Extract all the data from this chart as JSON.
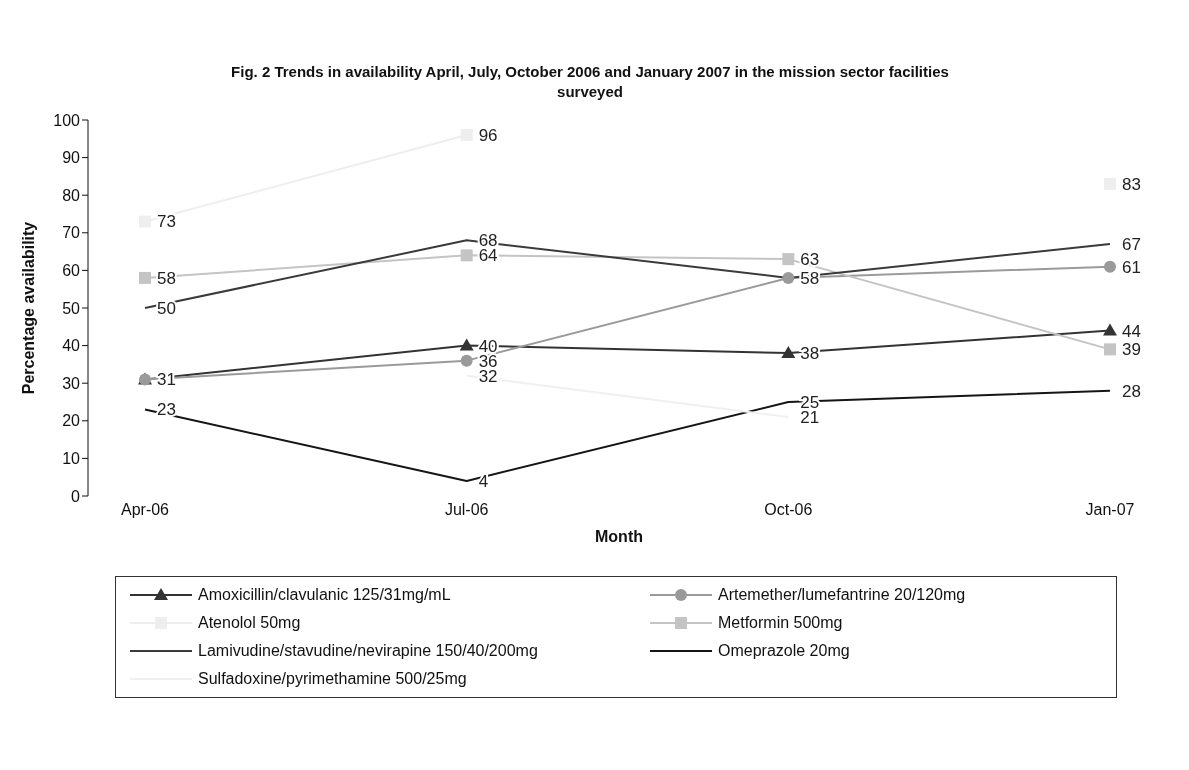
{
  "chart_data": {
    "type": "line",
    "title": "Fig. 2 Trends in availability April, July, October 2006 and January 2007 in the mission sector facilities surveyed",
    "xlabel": "Month",
    "ylabel": "Percentage availability",
    "categories": [
      "Apr-06",
      "Jul-06",
      "Oct-06",
      "Jan-07"
    ],
    "ylim": [
      0,
      100
    ],
    "yticks": [
      0,
      10,
      20,
      30,
      40,
      50,
      60,
      70,
      80,
      90,
      100
    ],
    "grid": false,
    "legend": "bottom",
    "series": [
      {
        "name": "Amoxicillin/clavulanic 125/31mg/mL",
        "color": "#333333",
        "marker": "triangle",
        "values": [
          31,
          40,
          38,
          44
        ],
        "value_labels": [
          "31",
          "40",
          "38",
          "44"
        ]
      },
      {
        "name": "Artemether/lumefantrine 20/120mg",
        "color": "#9a9a9a",
        "marker": "circle",
        "values": [
          31,
          36,
          58,
          61
        ],
        "value_labels": [
          null,
          "36",
          "58",
          "61"
        ]
      },
      {
        "name": "Atenolol 50mg",
        "color": "#eeeeee",
        "marker": "square",
        "values": [
          73,
          96,
          null,
          83
        ],
        "value_labels": [
          "73",
          "96",
          null,
          "83"
        ]
      },
      {
        "name": "Metformin 500mg",
        "color": "#c4c4c4",
        "marker": "square",
        "values": [
          58,
          64,
          63,
          39
        ],
        "value_labels": [
          "58",
          "64",
          "63",
          "39"
        ]
      },
      {
        "name": "Lamivudine/stavudine/nevirapine 150/40/200mg",
        "color": "#3a3a3a",
        "marker": "none",
        "values": [
          50,
          68,
          58,
          67
        ],
        "value_labels": [
          "50",
          "68",
          null,
          "67"
        ]
      },
      {
        "name": "Omeprazole 20mg",
        "color": "#151515",
        "marker": "none",
        "values": [
          23,
          4,
          25,
          28
        ],
        "value_labels": [
          "23",
          "4",
          "25",
          "28"
        ]
      },
      {
        "name": "Sulfadoxine/pyrimethamine 500/25mg",
        "color": "#f0f0f0",
        "marker": "none",
        "values": [
          null,
          32,
          21,
          null
        ],
        "value_labels": [
          null,
          "32",
          "21",
          null
        ]
      }
    ]
  }
}
